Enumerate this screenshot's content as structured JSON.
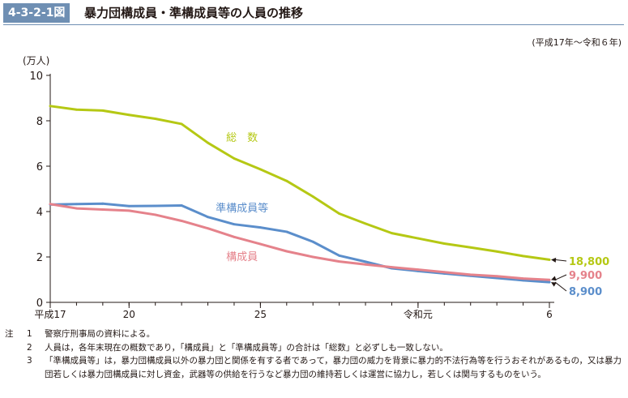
{
  "figure": {
    "number": "4-3-2-1図",
    "title": "暴力団構成員・準構成員等の人員の推移",
    "period": "(平成17年〜令和６年)"
  },
  "notes": {
    "prefix": "注",
    "items": [
      {
        "num": "1",
        "text": "警察庁刑事局の資料による。"
      },
      {
        "num": "2",
        "text": "人員は，各年末現在の概数であり，「構成員」と「準構成員等」の合計は「総数」と必ずしも一致しない。"
      },
      {
        "num": "3",
        "text": "「準構成員等」は，暴力団構成員以外の暴力団と関係を有する者であって，暴力団の威力を背景に暴力的不法行為等を行うおそれがあるもの，又は暴力団若しくは暴力団構成員に対し資金，武器等の供給を行うなど暴力団の維持若しくは運営に協力し，若しくは関与するものをいう。"
      }
    ]
  },
  "chart_data": {
    "type": "line",
    "ylabel": "(万人)",
    "xlabel": "",
    "ylim": [
      0,
      10
    ],
    "yticks": [
      0,
      2,
      4,
      6,
      8,
      10
    ],
    "x": [
      2005,
      2006,
      2007,
      2008,
      2009,
      2010,
      2011,
      2012,
      2013,
      2014,
      2015,
      2016,
      2017,
      2018,
      2019,
      2020,
      2021,
      2022,
      2023,
      2024
    ],
    "xticks": [
      {
        "value": 2005,
        "label": "平成17"
      },
      {
        "value": 2008,
        "label": "20"
      },
      {
        "value": 2013,
        "label": "25"
      },
      {
        "value": 2019,
        "label": "令和元"
      },
      {
        "value": 2024,
        "label": "6"
      }
    ],
    "grid": false,
    "series": [
      {
        "name": "総　数",
        "color": "#b5c814",
        "values": [
          8.65,
          8.49,
          8.45,
          8.26,
          8.09,
          7.86,
          7.03,
          6.34,
          5.86,
          5.35,
          4.66,
          3.91,
          3.47,
          3.05,
          2.82,
          2.59,
          2.42,
          2.24,
          2.04,
          1.88
        ],
        "end_label": "18,800"
      },
      {
        "name": "準構成員等",
        "color": "#5b8ecb",
        "values": [
          4.31,
          4.33,
          4.35,
          4.24,
          4.25,
          4.27,
          3.76,
          3.44,
          3.3,
          3.11,
          2.67,
          2.06,
          1.79,
          1.5,
          1.38,
          1.27,
          1.17,
          1.07,
          0.97,
          0.89
        ],
        "end_label": "8,900"
      },
      {
        "name": "構成員",
        "color": "#e5828b",
        "values": [
          4.33,
          4.14,
          4.09,
          4.04,
          3.86,
          3.59,
          3.26,
          2.88,
          2.57,
          2.25,
          2.0,
          1.8,
          1.67,
          1.55,
          1.44,
          1.33,
          1.22,
          1.15,
          1.05,
          0.99
        ],
        "end_label": "9,900"
      }
    ]
  }
}
